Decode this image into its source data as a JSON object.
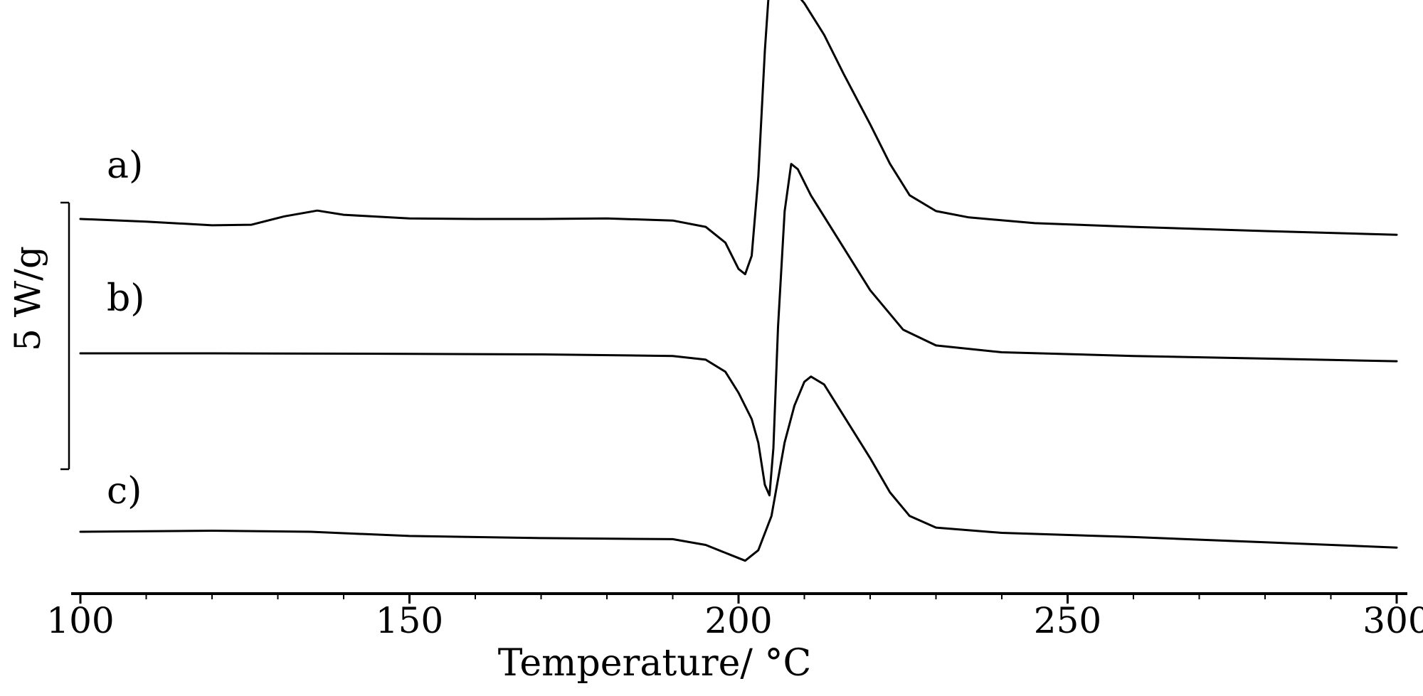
{
  "chart_data": {
    "type": "line",
    "xlabel": "Temperature/ °C",
    "xlim": [
      100,
      300
    ],
    "x_ticks": [
      100,
      150,
      200,
      250,
      300
    ],
    "scale_bar": {
      "label": "5 W/g",
      "value": 5
    },
    "colors": {
      "curve": "#000000",
      "axis": "#000000"
    },
    "series": [
      {
        "name": "a)",
        "points": [
          [
            100,
            0.0
          ],
          [
            110,
            -0.05
          ],
          [
            120,
            -0.12
          ],
          [
            126,
            -0.11
          ],
          [
            131,
            0.05
          ],
          [
            136,
            0.16
          ],
          [
            140,
            0.08
          ],
          [
            150,
            0.01
          ],
          [
            160,
            0.0
          ],
          [
            170,
            0.0
          ],
          [
            180,
            0.01
          ],
          [
            190,
            -0.03
          ],
          [
            195,
            -0.15
          ],
          [
            198,
            -0.45
          ],
          [
            200,
            -0.95
          ],
          [
            201,
            -1.05
          ],
          [
            202,
            -0.7
          ],
          [
            203,
            0.8
          ],
          [
            204,
            3.2
          ],
          [
            205,
            5.05
          ],
          [
            205.6,
            5.12
          ],
          [
            206.5,
            4.8
          ],
          [
            208,
            4.4
          ],
          [
            210,
            4.1
          ],
          [
            213,
            3.5
          ],
          [
            216,
            2.75
          ],
          [
            220,
            1.8
          ],
          [
            223,
            1.05
          ],
          [
            226,
            0.45
          ],
          [
            230,
            0.15
          ],
          [
            235,
            0.03
          ],
          [
            245,
            -0.08
          ],
          [
            260,
            -0.15
          ],
          [
            280,
            -0.23
          ],
          [
            300,
            -0.3
          ]
        ]
      },
      {
        "name": "b)",
        "points": [
          [
            100,
            0.0
          ],
          [
            120,
            0.0
          ],
          [
            150,
            -0.01
          ],
          [
            170,
            -0.02
          ],
          [
            190,
            -0.05
          ],
          [
            195,
            -0.12
          ],
          [
            198,
            -0.35
          ],
          [
            200,
            -0.75
          ],
          [
            202,
            -1.25
          ],
          [
            203,
            -1.7
          ],
          [
            204,
            -2.5
          ],
          [
            204.7,
            -2.7
          ],
          [
            205.3,
            -1.8
          ],
          [
            206,
            0.5
          ],
          [
            207,
            2.7
          ],
          [
            208,
            3.6
          ],
          [
            209,
            3.5
          ],
          [
            211,
            3.0
          ],
          [
            215,
            2.2
          ],
          [
            220,
            1.2
          ],
          [
            225,
            0.45
          ],
          [
            230,
            0.15
          ],
          [
            240,
            0.02
          ],
          [
            260,
            -0.05
          ],
          [
            280,
            -0.1
          ],
          [
            300,
            -0.15
          ]
        ]
      },
      {
        "name": "c)",
        "points": [
          [
            100,
            0.0
          ],
          [
            120,
            0.02
          ],
          [
            135,
            0.0
          ],
          [
            150,
            -0.08
          ],
          [
            170,
            -0.12
          ],
          [
            190,
            -0.14
          ],
          [
            195,
            -0.25
          ],
          [
            199,
            -0.45
          ],
          [
            201,
            -0.55
          ],
          [
            203,
            -0.35
          ],
          [
            205,
            0.3
          ],
          [
            207,
            1.7
          ],
          [
            208.5,
            2.4
          ],
          [
            210,
            2.85
          ],
          [
            211,
            2.95
          ],
          [
            213,
            2.8
          ],
          [
            216,
            2.2
          ],
          [
            220,
            1.4
          ],
          [
            223,
            0.75
          ],
          [
            226,
            0.3
          ],
          [
            230,
            0.08
          ],
          [
            240,
            -0.02
          ],
          [
            260,
            -0.1
          ],
          [
            280,
            -0.2
          ],
          [
            300,
            -0.3
          ]
        ]
      }
    ]
  }
}
